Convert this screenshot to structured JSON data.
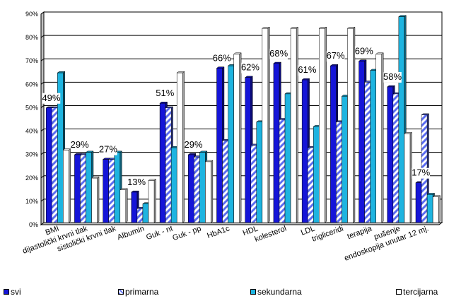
{
  "chart_data": {
    "type": "bar",
    "title": "",
    "xlabel": "",
    "ylabel": "",
    "ylim": [
      0,
      90
    ],
    "ytick_labels": [
      "0%",
      "10%",
      "20%",
      "30%",
      "40%",
      "50%",
      "60%",
      "70%",
      "80%",
      "90%"
    ],
    "grid": true,
    "legend_placement": "bottom",
    "categories": [
      "BMI",
      "dijastolički krvni tlak",
      "sistolički krvni tlak",
      "Albumin",
      "Guk - nt",
      "Guk - pp",
      "HbA1c",
      "HDL",
      "kolesterol",
      "LDL",
      "trigliceridi",
      "terapija",
      "pušenje",
      "endoskopija unutar 12 mj."
    ],
    "series": [
      {
        "name": "svi",
        "color": "#1515d8",
        "pattern": "solid",
        "values": [
          49,
          29,
          27,
          13,
          51,
          29,
          66,
          62,
          68,
          61,
          67,
          69,
          58,
          17
        ]
      },
      {
        "name": "primarna",
        "color": "#5b6cf0",
        "pattern": "striped",
        "values": [
          49,
          29,
          27,
          6,
          49,
          28,
          35,
          33,
          44,
          32,
          43,
          60,
          55,
          46
        ]
      },
      {
        "name": "sekundarna",
        "color": "#1eb4e0",
        "pattern": "solid",
        "values": [
          64,
          30,
          30,
          8,
          32,
          30,
          67,
          43,
          55,
          41,
          54,
          65,
          88,
          12
        ]
      },
      {
        "name": "tercijarna",
        "color": "#ffffff",
        "pattern": "outline",
        "values": [
          31,
          19,
          14,
          18,
          64,
          26,
          72,
          83,
          83,
          83,
          83,
          72,
          38,
          11
        ]
      }
    ],
    "data_labels": [
      "49%",
      "29%",
      "27%",
      "13%",
      "51%",
      "29%",
      "66%",
      "62%",
      "68%",
      "61%",
      "67%",
      "69%",
      "58%",
      "17%"
    ]
  }
}
